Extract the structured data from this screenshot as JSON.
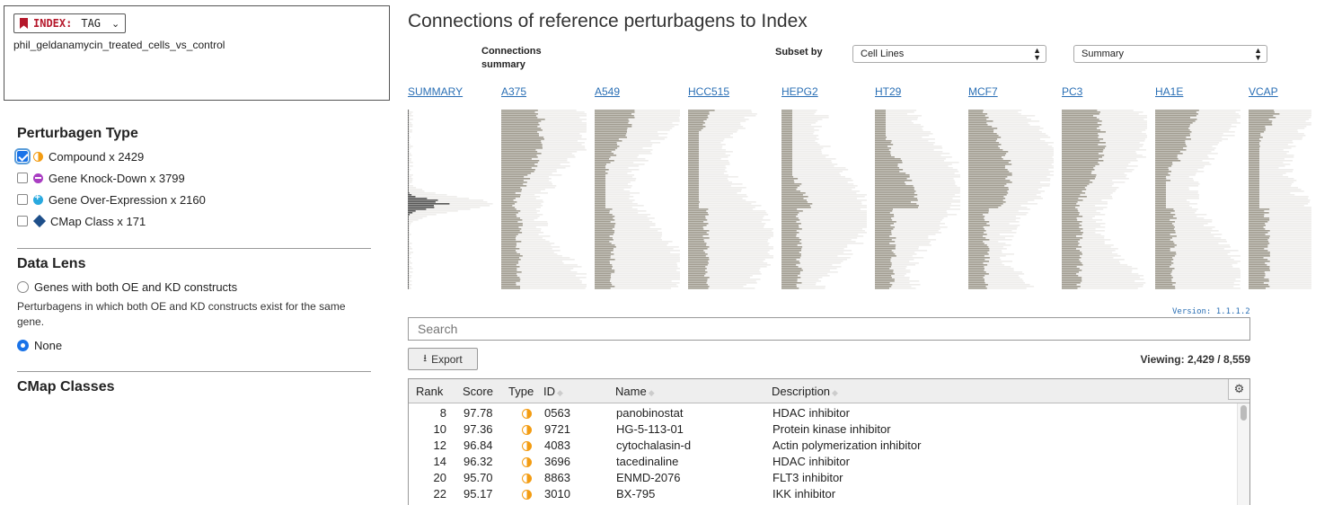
{
  "index": {
    "label": "INDEX:",
    "tag": "TAG",
    "name": "phil_geldanamycin_treated_cells_vs_control"
  },
  "perturbagen_type": {
    "title": "Perturbagen Type",
    "items": [
      {
        "label": "Compound x 2429",
        "checked": true,
        "icon": "compound-icon"
      },
      {
        "label": "Gene Knock-Down x 3799",
        "checked": false,
        "icon": "knockdown-icon"
      },
      {
        "label": "Gene Over-Expression x 2160",
        "checked": false,
        "icon": "overexpression-icon"
      },
      {
        "label": "CMap Class x 171",
        "checked": false,
        "icon": "cmap-class-icon"
      }
    ]
  },
  "data_lens": {
    "title": "Data Lens",
    "option_both": "Genes with both OE and KD constructs",
    "description": "Perturbagens in which both OE and KD constructs exist for the same gene.",
    "option_none": "None",
    "selected": "None"
  },
  "cmap_classes": {
    "title": "CMap Classes"
  },
  "main": {
    "title": "Connections of reference perturbagens to Index",
    "connections_summary": "Connections summary",
    "subset_label": "Subset by",
    "subset_value": "Cell Lines",
    "view_value": "Summary",
    "columns": [
      "SUMMARY",
      "A375",
      "A549",
      "HCC515",
      "HEPG2",
      "HT29",
      "MCF7",
      "PC3",
      "HA1E",
      "VCAP"
    ],
    "version": "Version: 1.1.1.2",
    "search_placeholder": "Search",
    "export_label": "Export",
    "viewing_label": "Viewing:",
    "viewing_value": "2,429 / 8,559"
  },
  "table": {
    "headers": [
      "Rank",
      "Score",
      "Type",
      "ID",
      "Name",
      "Description"
    ],
    "rows": [
      {
        "rank": "8",
        "score": "97.78",
        "id": "0563",
        "name": "panobinostat",
        "description": "HDAC inhibitor"
      },
      {
        "rank": "10",
        "score": "97.36",
        "id": "9721",
        "name": "HG-5-113-01",
        "description": "Protein kinase inhibitor"
      },
      {
        "rank": "12",
        "score": "96.84",
        "id": "4083",
        "name": "cytochalasin-d",
        "description": "Actin polymerization inhibitor"
      },
      {
        "rank": "14",
        "score": "96.32",
        "id": "3696",
        "name": "tacedinaline",
        "description": "HDAC inhibitor"
      },
      {
        "rank": "20",
        "score": "95.70",
        "id": "8863",
        "name": "ENMD-2076",
        "description": "FLT3 inhibitor"
      },
      {
        "rank": "22",
        "score": "95.17",
        "id": "3010",
        "name": "BX-795",
        "description": "IKK inhibitor"
      }
    ]
  },
  "colors": {
    "accent": "#2a6fb5",
    "index_red": "#b5182b",
    "bar_dark": "#a09b8f",
    "bar_light": "#eeedeb"
  }
}
